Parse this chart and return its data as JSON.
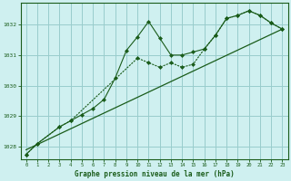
{
  "title": "Graphe pression niveau de la mer (hPa)",
  "background_color": "#cff0f0",
  "grid_color": "#99cccc",
  "line_color": "#1a5c1a",
  "xlim": [
    -0.5,
    23.5
  ],
  "ylim": [
    1027.6,
    1032.7
  ],
  "xticks": [
    0,
    1,
    2,
    3,
    4,
    5,
    6,
    7,
    8,
    9,
    10,
    11,
    12,
    13,
    14,
    15,
    16,
    17,
    18,
    19,
    20,
    21,
    22,
    23
  ],
  "yticks": [
    1028,
    1029,
    1030,
    1031,
    1032
  ],
  "series1_x": [
    0,
    1,
    3,
    4,
    5,
    6,
    7,
    8,
    9,
    10,
    11,
    12,
    13,
    14,
    15,
    16,
    17,
    18,
    19,
    20,
    21,
    22,
    23
  ],
  "series1_y": [
    1027.75,
    1028.1,
    1028.65,
    1028.85,
    1029.05,
    1029.25,
    1029.55,
    1030.25,
    1031.15,
    1031.6,
    1032.1,
    1031.55,
    1031.0,
    1031.0,
    1031.1,
    1031.2,
    1031.65,
    1032.2,
    1032.3,
    1032.45,
    1032.3,
    1032.05,
    1031.85
  ],
  "series2_x": [
    0,
    1,
    3,
    4,
    10,
    11,
    12,
    13,
    14,
    15,
    16,
    17,
    18,
    19,
    20,
    21,
    22,
    23
  ],
  "series2_y": [
    1027.75,
    1028.1,
    1028.65,
    1028.85,
    1030.9,
    1030.75,
    1030.6,
    1030.75,
    1030.6,
    1030.7,
    1031.2,
    1031.65,
    1032.2,
    1032.3,
    1032.45,
    1032.3,
    1032.05,
    1031.85
  ],
  "series3_x": [
    0,
    23
  ],
  "series3_y": [
    1027.9,
    1031.85
  ]
}
